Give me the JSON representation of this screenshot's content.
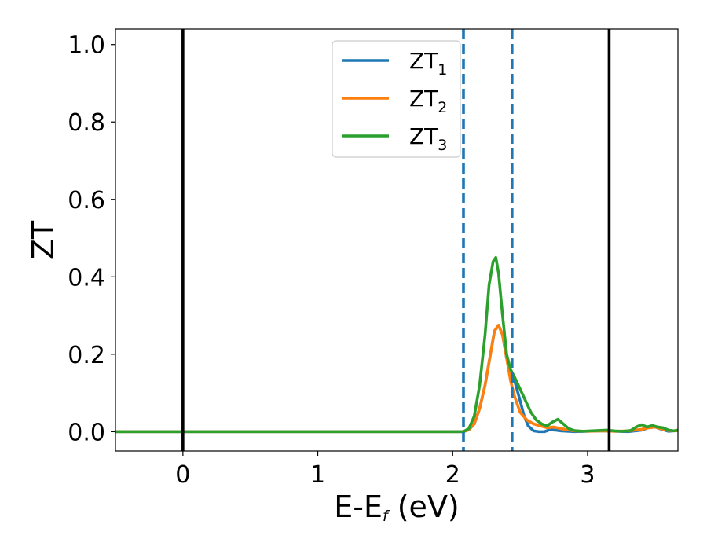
{
  "chart_data": {
    "type": "line",
    "xlabel_main": "E-E",
    "xlabel_sub": "f",
    "xlabel_unit": " (eV)",
    "ylabel": "ZT",
    "xlim": [
      -0.5,
      3.67
    ],
    "ylim": [
      -0.05,
      1.04
    ],
    "x_ticks": [
      "0",
      "1",
      "2",
      "3"
    ],
    "y_ticks": [
      "0.0",
      "0.2",
      "0.4",
      "0.6",
      "0.8",
      "1.0"
    ],
    "x_tick_values": [
      0,
      1,
      2,
      3
    ],
    "y_tick_values": [
      0.0,
      0.2,
      0.4,
      0.6,
      0.8,
      1.0
    ],
    "grid": false,
    "legend_position": "top-center",
    "vertical_lines": [
      {
        "x": 0.0,
        "style": "solid",
        "color": "#000000"
      },
      {
        "x": 3.16,
        "style": "solid",
        "color": "#000000"
      },
      {
        "x": 2.08,
        "style": "dashed",
        "color": "#1f77b4"
      },
      {
        "x": 2.44,
        "style": "dashed",
        "color": "#1f77b4"
      }
    ],
    "series": [
      {
        "name": "ZT",
        "subscript": "1",
        "color": "#1f77b4",
        "points": [
          [
            -0.5,
            0
          ],
          [
            2.08,
            0
          ],
          [
            2.12,
            0.005
          ],
          [
            2.16,
            0.02
          ],
          [
            2.2,
            0.06
          ],
          [
            2.24,
            0.12
          ],
          [
            2.28,
            0.2
          ],
          [
            2.31,
            0.26
          ],
          [
            2.34,
            0.275
          ],
          [
            2.37,
            0.25
          ],
          [
            2.4,
            0.19
          ],
          [
            2.43,
            0.16
          ],
          [
            2.46,
            0.13
          ],
          [
            2.5,
            0.08
          ],
          [
            2.53,
            0.04
          ],
          [
            2.56,
            0.015
          ],
          [
            2.6,
            0.002
          ],
          [
            2.64,
            0
          ],
          [
            2.68,
            0
          ],
          [
            2.72,
            0.005
          ],
          [
            2.76,
            0.004
          ],
          [
            2.8,
            0.002
          ],
          [
            2.9,
            0
          ],
          [
            3.0,
            0.001
          ],
          [
            3.1,
            0.002
          ],
          [
            3.2,
            0.001
          ],
          [
            3.3,
            0
          ],
          [
            3.4,
            0.004
          ],
          [
            3.45,
            0.01
          ],
          [
            3.5,
            0.012
          ],
          [
            3.55,
            0.006
          ],
          [
            3.6,
            0.001
          ],
          [
            3.67,
            0.003
          ]
        ]
      },
      {
        "name": "ZT",
        "subscript": "2",
        "color": "#ff7f0e",
        "points": [
          [
            -0.5,
            0
          ],
          [
            2.08,
            0
          ],
          [
            2.12,
            0.005
          ],
          [
            2.16,
            0.02
          ],
          [
            2.2,
            0.06
          ],
          [
            2.24,
            0.12
          ],
          [
            2.28,
            0.2
          ],
          [
            2.31,
            0.26
          ],
          [
            2.34,
            0.275
          ],
          [
            2.37,
            0.25
          ],
          [
            2.4,
            0.19
          ],
          [
            2.43,
            0.13
          ],
          [
            2.46,
            0.09
          ],
          [
            2.5,
            0.05
          ],
          [
            2.55,
            0.03
          ],
          [
            2.6,
            0.02
          ],
          [
            2.65,
            0.015
          ],
          [
            2.7,
            0.01
          ],
          [
            2.75,
            0.012
          ],
          [
            2.8,
            0.008
          ],
          [
            2.9,
            0.002
          ],
          [
            3.0,
            0.001
          ],
          [
            3.1,
            0.002
          ],
          [
            3.2,
            0.001
          ],
          [
            3.3,
            0.002
          ],
          [
            3.4,
            0.006
          ],
          [
            3.45,
            0.01
          ],
          [
            3.5,
            0.012
          ],
          [
            3.55,
            0.007
          ],
          [
            3.6,
            0.003
          ],
          [
            3.67,
            0.002
          ]
        ]
      },
      {
        "name": "ZT",
        "subscript": "3",
        "color": "#2ca02c",
        "points": [
          [
            -0.5,
            0
          ],
          [
            2.08,
            0
          ],
          [
            2.12,
            0.008
          ],
          [
            2.16,
            0.04
          ],
          [
            2.2,
            0.12
          ],
          [
            2.24,
            0.25
          ],
          [
            2.27,
            0.38
          ],
          [
            2.3,
            0.44
          ],
          [
            2.32,
            0.45
          ],
          [
            2.34,
            0.41
          ],
          [
            2.37,
            0.3
          ],
          [
            2.4,
            0.2
          ],
          [
            2.43,
            0.16
          ],
          [
            2.46,
            0.14
          ],
          [
            2.5,
            0.11
          ],
          [
            2.54,
            0.08
          ],
          [
            2.58,
            0.05
          ],
          [
            2.62,
            0.03
          ],
          [
            2.66,
            0.02
          ],
          [
            2.7,
            0.015
          ],
          [
            2.74,
            0.025
          ],
          [
            2.78,
            0.032
          ],
          [
            2.82,
            0.02
          ],
          [
            2.86,
            0.008
          ],
          [
            2.9,
            0.003
          ],
          [
            2.96,
            0.001
          ],
          [
            3.02,
            0.002
          ],
          [
            3.08,
            0.003
          ],
          [
            3.14,
            0.004
          ],
          [
            3.2,
            0.002
          ],
          [
            3.26,
            0.001
          ],
          [
            3.32,
            0.003
          ],
          [
            3.36,
            0.012
          ],
          [
            3.4,
            0.018
          ],
          [
            3.44,
            0.012
          ],
          [
            3.48,
            0.016
          ],
          [
            3.52,
            0.012
          ],
          [
            3.56,
            0.01
          ],
          [
            3.6,
            0.004
          ],
          [
            3.64,
            0.002
          ],
          [
            3.67,
            0.004
          ]
        ]
      }
    ]
  }
}
